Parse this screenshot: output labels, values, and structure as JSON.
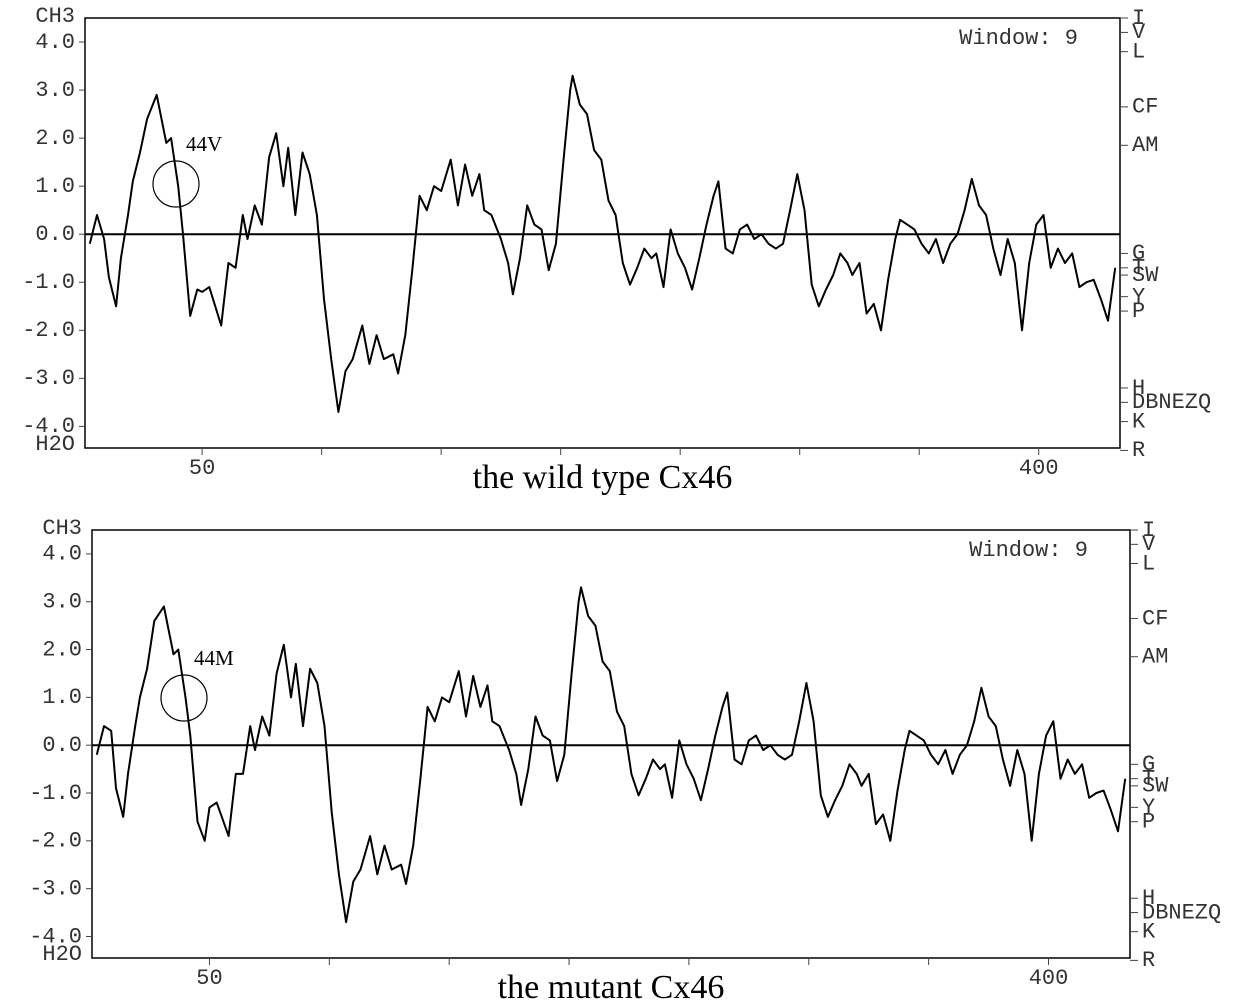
{
  "chart_data": [
    {
      "type": "line",
      "title": "the wild type Cx46",
      "window": "Window: 9",
      "y_top_label": "CH3",
      "y_bottom_label": "H2O",
      "annotation": "44V",
      "color": "#000000",
      "xlim": [
        1,
        434
      ],
      "ylim": [
        -4.45,
        4.5
      ],
      "xticks": [
        50,
        400
      ],
      "xminorticks": [
        100,
        150,
        200,
        250,
        300,
        350
      ],
      "yticks": [
        {
          "value": 4,
          "label": "4.0"
        },
        {
          "value": 3,
          "label": "3.0"
        },
        {
          "value": 2,
          "label": "2.0"
        },
        {
          "value": 1,
          "label": "1.0"
        },
        {
          "value": 0,
          "label": "0.0"
        },
        {
          "value": -1,
          "label": "-1.0"
        },
        {
          "value": -2,
          "label": "-2.0"
        },
        {
          "value": -3,
          "label": "-3.0"
        },
        {
          "value": -4,
          "label": "-4.0"
        }
      ],
      "y2ticks": [
        {
          "value": 4.5,
          "label": "I"
        },
        {
          "value": 4.2,
          "label": "V"
        },
        {
          "value": 3.8,
          "label": "L"
        },
        {
          "value": 2.65,
          "label": "CF"
        },
        {
          "value": 1.85,
          "label": "AM"
        },
        {
          "value": -0.4,
          "label": "G"
        },
        {
          "value": -0.7,
          "label": "T"
        },
        {
          "value": -0.85,
          "label": "SW"
        },
        {
          "value": -1.3,
          "label": "Y"
        },
        {
          "value": -1.6,
          "label": "P"
        },
        {
          "value": -3.2,
          "label": "H"
        },
        {
          "value": -3.5,
          "label": "DBNEZQ"
        },
        {
          "value": -3.9,
          "label": "K"
        },
        {
          "value": -4.5,
          "label": "R"
        }
      ],
      "x": [
        3,
        6,
        9,
        11,
        14,
        16,
        19,
        21,
        24,
        27,
        31,
        35,
        37,
        40,
        42,
        45,
        48,
        50,
        53,
        58,
        61,
        64,
        67,
        69,
        72,
        75,
        78,
        81,
        84,
        86,
        89,
        92,
        95,
        98,
        101,
        104,
        107,
        110,
        113,
        117,
        120,
        123,
        126,
        130,
        132,
        135,
        138,
        141,
        144,
        147,
        150,
        154,
        157,
        160,
        163,
        166,
        168,
        171,
        175,
        178,
        180,
        183,
        186,
        189,
        192,
        195,
        198,
        201,
        204,
        205,
        208,
        211,
        214,
        217,
        220,
        223,
        226,
        229,
        232,
        235,
        238,
        240,
        243,
        246,
        249,
        252,
        255,
        258,
        261,
        264,
        266,
        269,
        272,
        275,
        278,
        281,
        284,
        287,
        290,
        293,
        296,
        299,
        302,
        305,
        308,
        311,
        314,
        317,
        320,
        322,
        325,
        328,
        331,
        334,
        337,
        340,
        342,
        345,
        348,
        351,
        354,
        357,
        360,
        363,
        366,
        369,
        372,
        375,
        378,
        381,
        384,
        387,
        390,
        393,
        396,
        399,
        402,
        405,
        408,
        411,
        414,
        417,
        420,
        423,
        426,
        429,
        432
      ],
      "values": [
        -0.2,
        0.4,
        -0.1,
        -0.9,
        -1.5,
        -0.5,
        0.4,
        1.1,
        1.7,
        2.4,
        2.9,
        1.9,
        2.0,
        1.0,
        0,
        -1.7,
        -1.15,
        -1.2,
        -1.1,
        -1.9,
        -0.6,
        -0.7,
        0.4,
        -0.1,
        0.6,
        0.2,
        1.6,
        2.1,
        1.0,
        1.8,
        0.4,
        1.7,
        1.25,
        0.4,
        -1.35,
        -2.6,
        -3.7,
        -2.85,
        -2.6,
        -1.9,
        -2.7,
        -2.1,
        -2.6,
        -2.5,
        -2.9,
        -2.1,
        -0.7,
        0.8,
        0.5,
        1.0,
        0.9,
        1.55,
        0.6,
        1.45,
        0.8,
        1.25,
        0.5,
        0.4,
        -0.1,
        -0.6,
        -1.25,
        -0.5,
        0.6,
        0.2,
        0.1,
        -0.75,
        -0.2,
        1.45,
        3.0,
        3.3,
        2.7,
        2.5,
        1.75,
        1.55,
        0.7,
        0.4,
        -0.6,
        -1.05,
        -0.7,
        -0.3,
        -0.5,
        -0.4,
        -1.1,
        0.1,
        -0.4,
        -0.7,
        -1.15,
        -0.5,
        0.2,
        0.8,
        1.1,
        -0.3,
        -0.4,
        0.1,
        0.2,
        -0.1,
        0,
        -0.2,
        -0.3,
        -0.2,
        0.5,
        1.25,
        0.5,
        -1.05,
        -1.5,
        -1.15,
        -0.85,
        -0.4,
        -0.6,
        -0.85,
        -0.6,
        -1.65,
        -1.45,
        -2.0,
        -0.95,
        -0.1,
        0.3,
        0.2,
        0.1,
        -0.2,
        -0.4,
        -0.1,
        -0.6,
        -0.2,
        0,
        0.5,
        1.15,
        0.6,
        0.4,
        -0.3,
        -0.85,
        -0.1,
        -0.6,
        -2.0,
        -0.6,
        0.2,
        0.4,
        -0.7,
        -0.3,
        -0.6,
        -0.4,
        -1.1,
        -1.0,
        -0.95,
        -1.35,
        -1.8,
        -0.7
      ]
    },
    {
      "type": "line",
      "title": "the mutant Cx46",
      "window": "Window: 9",
      "y_top_label": "CH3",
      "y_bottom_label": "H2O",
      "annotation": "44M",
      "color": "#000000",
      "xlim": [
        1,
        434
      ],
      "ylim": [
        -4.45,
        4.5
      ],
      "xticks": [
        50,
        400
      ],
      "xminorticks": [
        100,
        150,
        200,
        250,
        300,
        350
      ],
      "yticks": [
        {
          "value": 4,
          "label": "4.0"
        },
        {
          "value": 3,
          "label": "3.0"
        },
        {
          "value": 2,
          "label": "2.0"
        },
        {
          "value": 1,
          "label": "1.0"
        },
        {
          "value": 0,
          "label": "0.0"
        },
        {
          "value": -1,
          "label": "-1.0"
        },
        {
          "value": -2,
          "label": "-2.0"
        },
        {
          "value": -3,
          "label": "-3.0"
        },
        {
          "value": -4,
          "label": "-4.0"
        }
      ],
      "y2ticks": [
        {
          "value": 4.5,
          "label": "I"
        },
        {
          "value": 4.2,
          "label": "V"
        },
        {
          "value": 3.8,
          "label": "L"
        },
        {
          "value": 2.65,
          "label": "CF"
        },
        {
          "value": 1.85,
          "label": "AM"
        },
        {
          "value": -0.4,
          "label": "G"
        },
        {
          "value": -0.7,
          "label": "T"
        },
        {
          "value": -0.85,
          "label": "SW"
        },
        {
          "value": -1.3,
          "label": "Y"
        },
        {
          "value": -1.6,
          "label": "P"
        },
        {
          "value": -3.2,
          "label": "H"
        },
        {
          "value": -3.5,
          "label": "DBNEZQ"
        },
        {
          "value": -3.9,
          "label": "K"
        },
        {
          "value": -4.5,
          "label": "R"
        }
      ],
      "x": [
        3,
        6,
        9,
        11,
        14,
        16,
        19,
        21,
        24,
        27,
        31,
        35,
        37,
        40,
        42,
        45,
        48,
        50,
        53,
        58,
        61,
        64,
        67,
        69,
        72,
        75,
        78,
        81,
        84,
        86,
        89,
        92,
        95,
        98,
        101,
        104,
        107,
        110,
        113,
        117,
        120,
        123,
        126,
        130,
        132,
        135,
        138,
        141,
        144,
        147,
        150,
        154,
        157,
        160,
        163,
        166,
        168,
        171,
        175,
        178,
        180,
        183,
        186,
        189,
        192,
        195,
        198,
        201,
        204,
        205,
        208,
        211,
        214,
        217,
        220,
        223,
        226,
        229,
        232,
        235,
        238,
        240,
        243,
        246,
        249,
        252,
        255,
        258,
        261,
        264,
        266,
        269,
        272,
        275,
        278,
        281,
        284,
        287,
        290,
        293,
        296,
        299,
        302,
        305,
        308,
        311,
        314,
        317,
        320,
        322,
        325,
        328,
        331,
        334,
        337,
        340,
        342,
        345,
        348,
        351,
        354,
        357,
        360,
        363,
        366,
        369,
        372,
        375,
        378,
        381,
        384,
        387,
        390,
        393,
        396,
        399,
        402,
        405,
        408,
        411,
        414,
        417,
        420,
        423,
        426,
        429,
        432
      ],
      "values": [
        -0.2,
        0.4,
        0.3,
        -0.9,
        -1.5,
        -0.6,
        0.4,
        1.0,
        1.6,
        2.6,
        2.9,
        1.9,
        2.0,
        1.0,
        0.2,
        -1.6,
        -2.0,
        -1.3,
        -1.2,
        -1.9,
        -0.6,
        -0.6,
        0.4,
        -0.1,
        0.6,
        0.2,
        1.5,
        2.1,
        1.0,
        1.7,
        0.4,
        1.6,
        1.3,
        0.4,
        -1.4,
        -2.7,
        -3.7,
        -2.85,
        -2.6,
        -1.9,
        -2.7,
        -2.1,
        -2.6,
        -2.5,
        -2.9,
        -2.1,
        -0.7,
        0.8,
        0.5,
        1.0,
        0.9,
        1.55,
        0.6,
        1.45,
        0.8,
        1.25,
        0.5,
        0.4,
        -0.1,
        -0.6,
        -1.25,
        -0.5,
        0.6,
        0.2,
        0.1,
        -0.75,
        -0.2,
        1.45,
        3.0,
        3.3,
        2.7,
        2.5,
        1.75,
        1.55,
        0.7,
        0.4,
        -0.6,
        -1.05,
        -0.7,
        -0.3,
        -0.5,
        -0.4,
        -1.1,
        0.1,
        -0.4,
        -0.7,
        -1.15,
        -0.5,
        0.2,
        0.8,
        1.1,
        -0.3,
        -0.4,
        0.1,
        0.2,
        -0.1,
        0,
        -0.2,
        -0.3,
        -0.2,
        0.5,
        1.3,
        0.5,
        -1.05,
        -1.5,
        -1.15,
        -0.85,
        -0.4,
        -0.6,
        -0.85,
        -0.6,
        -1.65,
        -1.45,
        -2.0,
        -0.95,
        -0.1,
        0.3,
        0.2,
        0.1,
        -0.2,
        -0.4,
        -0.1,
        -0.6,
        -0.2,
        0,
        0.5,
        1.2,
        0.6,
        0.4,
        -0.3,
        -0.85,
        -0.1,
        -0.6,
        -2.0,
        -0.6,
        0.2,
        0.5,
        -0.7,
        -0.3,
        -0.6,
        -0.4,
        -1.1,
        -1.0,
        -0.95,
        -1.35,
        -1.8,
        -0.7
      ]
    }
  ]
}
